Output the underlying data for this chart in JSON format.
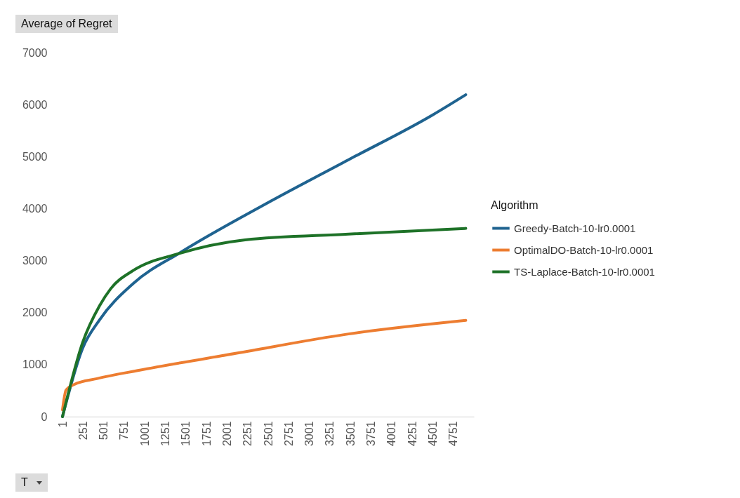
{
  "chart_data": {
    "type": "line",
    "title": "Average of Regret",
    "xlabel": "T",
    "legend_title": "Algorithm",
    "legend": "right",
    "grid": false,
    "line_style": "solid",
    "marker": "none",
    "xlim": [
      1,
      5000
    ],
    "xticks": [
      1,
      251,
      501,
      751,
      1001,
      1251,
      1501,
      1751,
      2001,
      2251,
      2501,
      2751,
      3001,
      3251,
      3501,
      3751,
      4001,
      4251,
      4501,
      4751
    ],
    "ylim": [
      0,
      7000
    ],
    "yticks": [
      0,
      1000,
      2000,
      3000,
      4000,
      5000,
      6000,
      7000
    ],
    "series": [
      {
        "name": "Greedy-Batch-10-lr0.0001",
        "color": "#1f6390",
        "x": [
          1,
          247,
          451,
          860,
          1437,
          2458,
          3477,
          4497,
          4901
        ],
        "values": [
          0,
          1320,
          1860,
          2560,
          3160,
          4080,
          4940,
          5800,
          6190
        ]
      },
      {
        "name": "OptimalDO-Batch-10-lr0.0001",
        "color": "#ed7d31",
        "x": [
          1,
          44,
          146,
          418,
          928,
          2118,
          3477,
          4901
        ],
        "values": [
          130,
          510,
          620,
          730,
          890,
          1220,
          1590,
          1850
        ]
      },
      {
        "name": "TS-Laplace-Batch-10-lr0.0001",
        "color": "#1e7228",
        "x": [
          1,
          247,
          451,
          587,
          860,
          1403,
          2220,
          3477,
          4901
        ],
        "values": [
          0,
          1430,
          2130,
          2460,
          2810,
          3130,
          3400,
          3510,
          3620
        ]
      }
    ]
  }
}
